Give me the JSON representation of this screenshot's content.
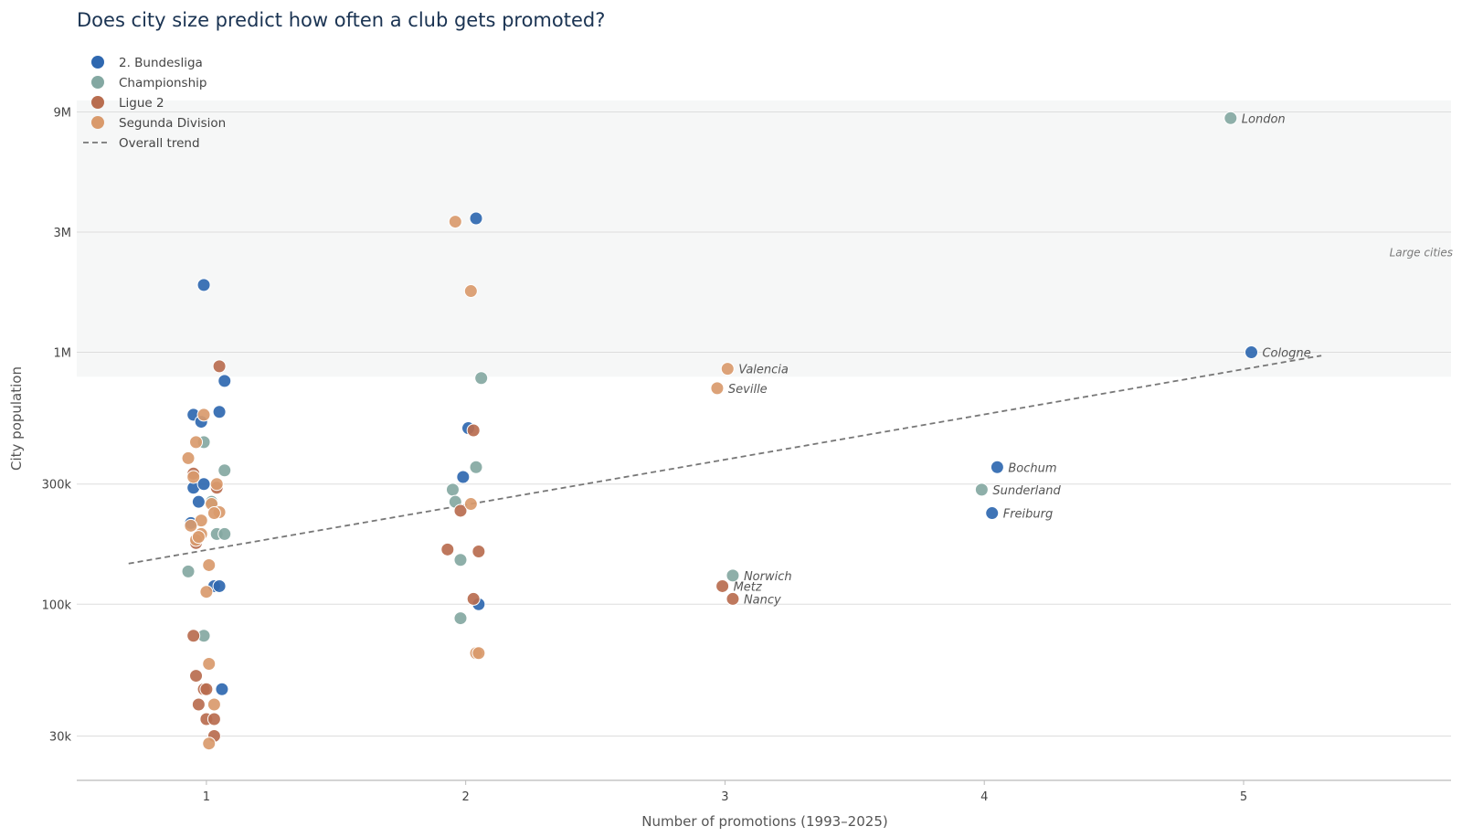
{
  "chart_data": {
    "type": "scatter",
    "title": "Does city size predict how often a club gets promoted?",
    "xlabel": "Number of promotions  (1993–2025)",
    "ylabel": "City population",
    "y_scale": "log",
    "xlim": [
      0.5,
      5.8
    ],
    "ylim": [
      20000,
      12000000
    ],
    "x_ticks": [
      1,
      2,
      3,
      4,
      5
    ],
    "y_ticks": [
      {
        "value": 30000,
        "label": "30k"
      },
      {
        "value": 100000,
        "label": "100k"
      },
      {
        "value": 300000,
        "label": "300k"
      },
      {
        "value": 1000000,
        "label": "1M"
      },
      {
        "value": 3000000,
        "label": "3M"
      },
      {
        "value": 9000000,
        "label": "9M"
      }
    ],
    "grid": "horizontal",
    "legend_position": "top-left",
    "band": {
      "label": "Large cities",
      "y_from": 800000,
      "y_to": 10000000,
      "color": "#f6f7f7"
    },
    "trend": {
      "label": "Overall trend",
      "x": [
        0.7,
        5.3
      ],
      "y": [
        145000,
        970000
      ],
      "color": "#777777"
    },
    "series": [
      {
        "name": "2. Bundesliga",
        "color": "#2f68b0",
        "points": [
          [
            0.99,
            1850000
          ],
          [
            0.95,
            565000
          ],
          [
            1.05,
            580000
          ],
          [
            0.98,
            530000
          ],
          [
            1.07,
            770000
          ],
          [
            0.95,
            290000
          ],
          [
            0.99,
            300000
          ],
          [
            0.97,
            255000
          ],
          [
            0.94,
            210000
          ],
          [
            1.03,
            118000
          ],
          [
            1.05,
            118000
          ],
          [
            1.06,
            46000
          ],
          [
            2.04,
            3400000
          ],
          [
            2.01,
            500000
          ],
          [
            1.99,
            320000
          ],
          [
            2.05,
            100000
          ],
          [
            5.03,
            1000000
          ],
          [
            4.05,
            350000
          ],
          [
            4.03,
            230000
          ]
        ]
      },
      {
        "name": "Championship",
        "color": "#84a8a2",
        "points": [
          [
            0.99,
            440000
          ],
          [
            1.07,
            340000
          ],
          [
            1.02,
            255000
          ],
          [
            1.04,
            190000
          ],
          [
            1.07,
            190000
          ],
          [
            0.93,
            135000
          ],
          [
            0.99,
            75000
          ],
          [
            2.06,
            790000
          ],
          [
            2.04,
            350000
          ],
          [
            1.95,
            285000
          ],
          [
            1.96,
            255000
          ],
          [
            1.98,
            150000
          ],
          [
            1.98,
            88000
          ],
          [
            4.95,
            8500000
          ],
          [
            3.99,
            285000
          ],
          [
            3.03,
            130000
          ]
        ]
      },
      {
        "name": "Ligue 2",
        "color": "#b86d4f",
        "points": [
          [
            1.05,
            880000
          ],
          [
            1.04,
            290000
          ],
          [
            0.95,
            330000
          ],
          [
            0.96,
            175000
          ],
          [
            0.95,
            75000
          ],
          [
            0.96,
            52000
          ],
          [
            0.99,
            46000
          ],
          [
            1.0,
            46000
          ],
          [
            0.97,
            40000
          ],
          [
            1.0,
            35000
          ],
          [
            1.03,
            35000
          ],
          [
            1.03,
            30000
          ],
          [
            2.03,
            490000
          ],
          [
            1.98,
            235000
          ],
          [
            1.93,
            165000
          ],
          [
            2.05,
            162000
          ],
          [
            2.03,
            105000
          ],
          [
            2.99,
            118000
          ],
          [
            3.03,
            105000
          ]
        ]
      },
      {
        "name": "Segunda Division",
        "color": "#d99a6c",
        "points": [
          [
            0.99,
            565000
          ],
          [
            0.96,
            440000
          ],
          [
            0.93,
            380000
          ],
          [
            0.95,
            320000
          ],
          [
            1.04,
            300000
          ],
          [
            1.02,
            250000
          ],
          [
            1.05,
            232000
          ],
          [
            1.03,
            230000
          ],
          [
            0.98,
            215000
          ],
          [
            0.94,
            205000
          ],
          [
            0.98,
            190000
          ],
          [
            0.96,
            180000
          ],
          [
            0.97,
            185000
          ],
          [
            1.01,
            143000
          ],
          [
            1.0,
            112000
          ],
          [
            1.01,
            58000
          ],
          [
            1.03,
            40000
          ],
          [
            1.01,
            28000
          ],
          [
            1.96,
            3300000
          ],
          [
            2.02,
            1750000
          ],
          [
            2.02,
            250000
          ],
          [
            2.04,
            64000
          ],
          [
            2.05,
            64000
          ],
          [
            3.01,
            860000
          ],
          [
            2.97,
            720000
          ]
        ]
      }
    ],
    "annotations": [
      {
        "text": "London",
        "x": 4.95,
        "y": 8500000
      },
      {
        "text": "Cologne",
        "x": 5.03,
        "y": 1000000
      },
      {
        "text": "Valencia",
        "x": 3.01,
        "y": 860000
      },
      {
        "text": "Seville",
        "x": 2.97,
        "y": 720000
      },
      {
        "text": "Bochum",
        "x": 4.05,
        "y": 350000
      },
      {
        "text": "Sunderland",
        "x": 3.99,
        "y": 285000
      },
      {
        "text": "Freiburg",
        "x": 4.03,
        "y": 230000
      },
      {
        "text": "Norwich",
        "x": 3.03,
        "y": 130000
      },
      {
        "text": "Metz",
        "x": 2.99,
        "y": 118000
      },
      {
        "text": "Nancy",
        "x": 3.03,
        "y": 105000
      }
    ]
  }
}
